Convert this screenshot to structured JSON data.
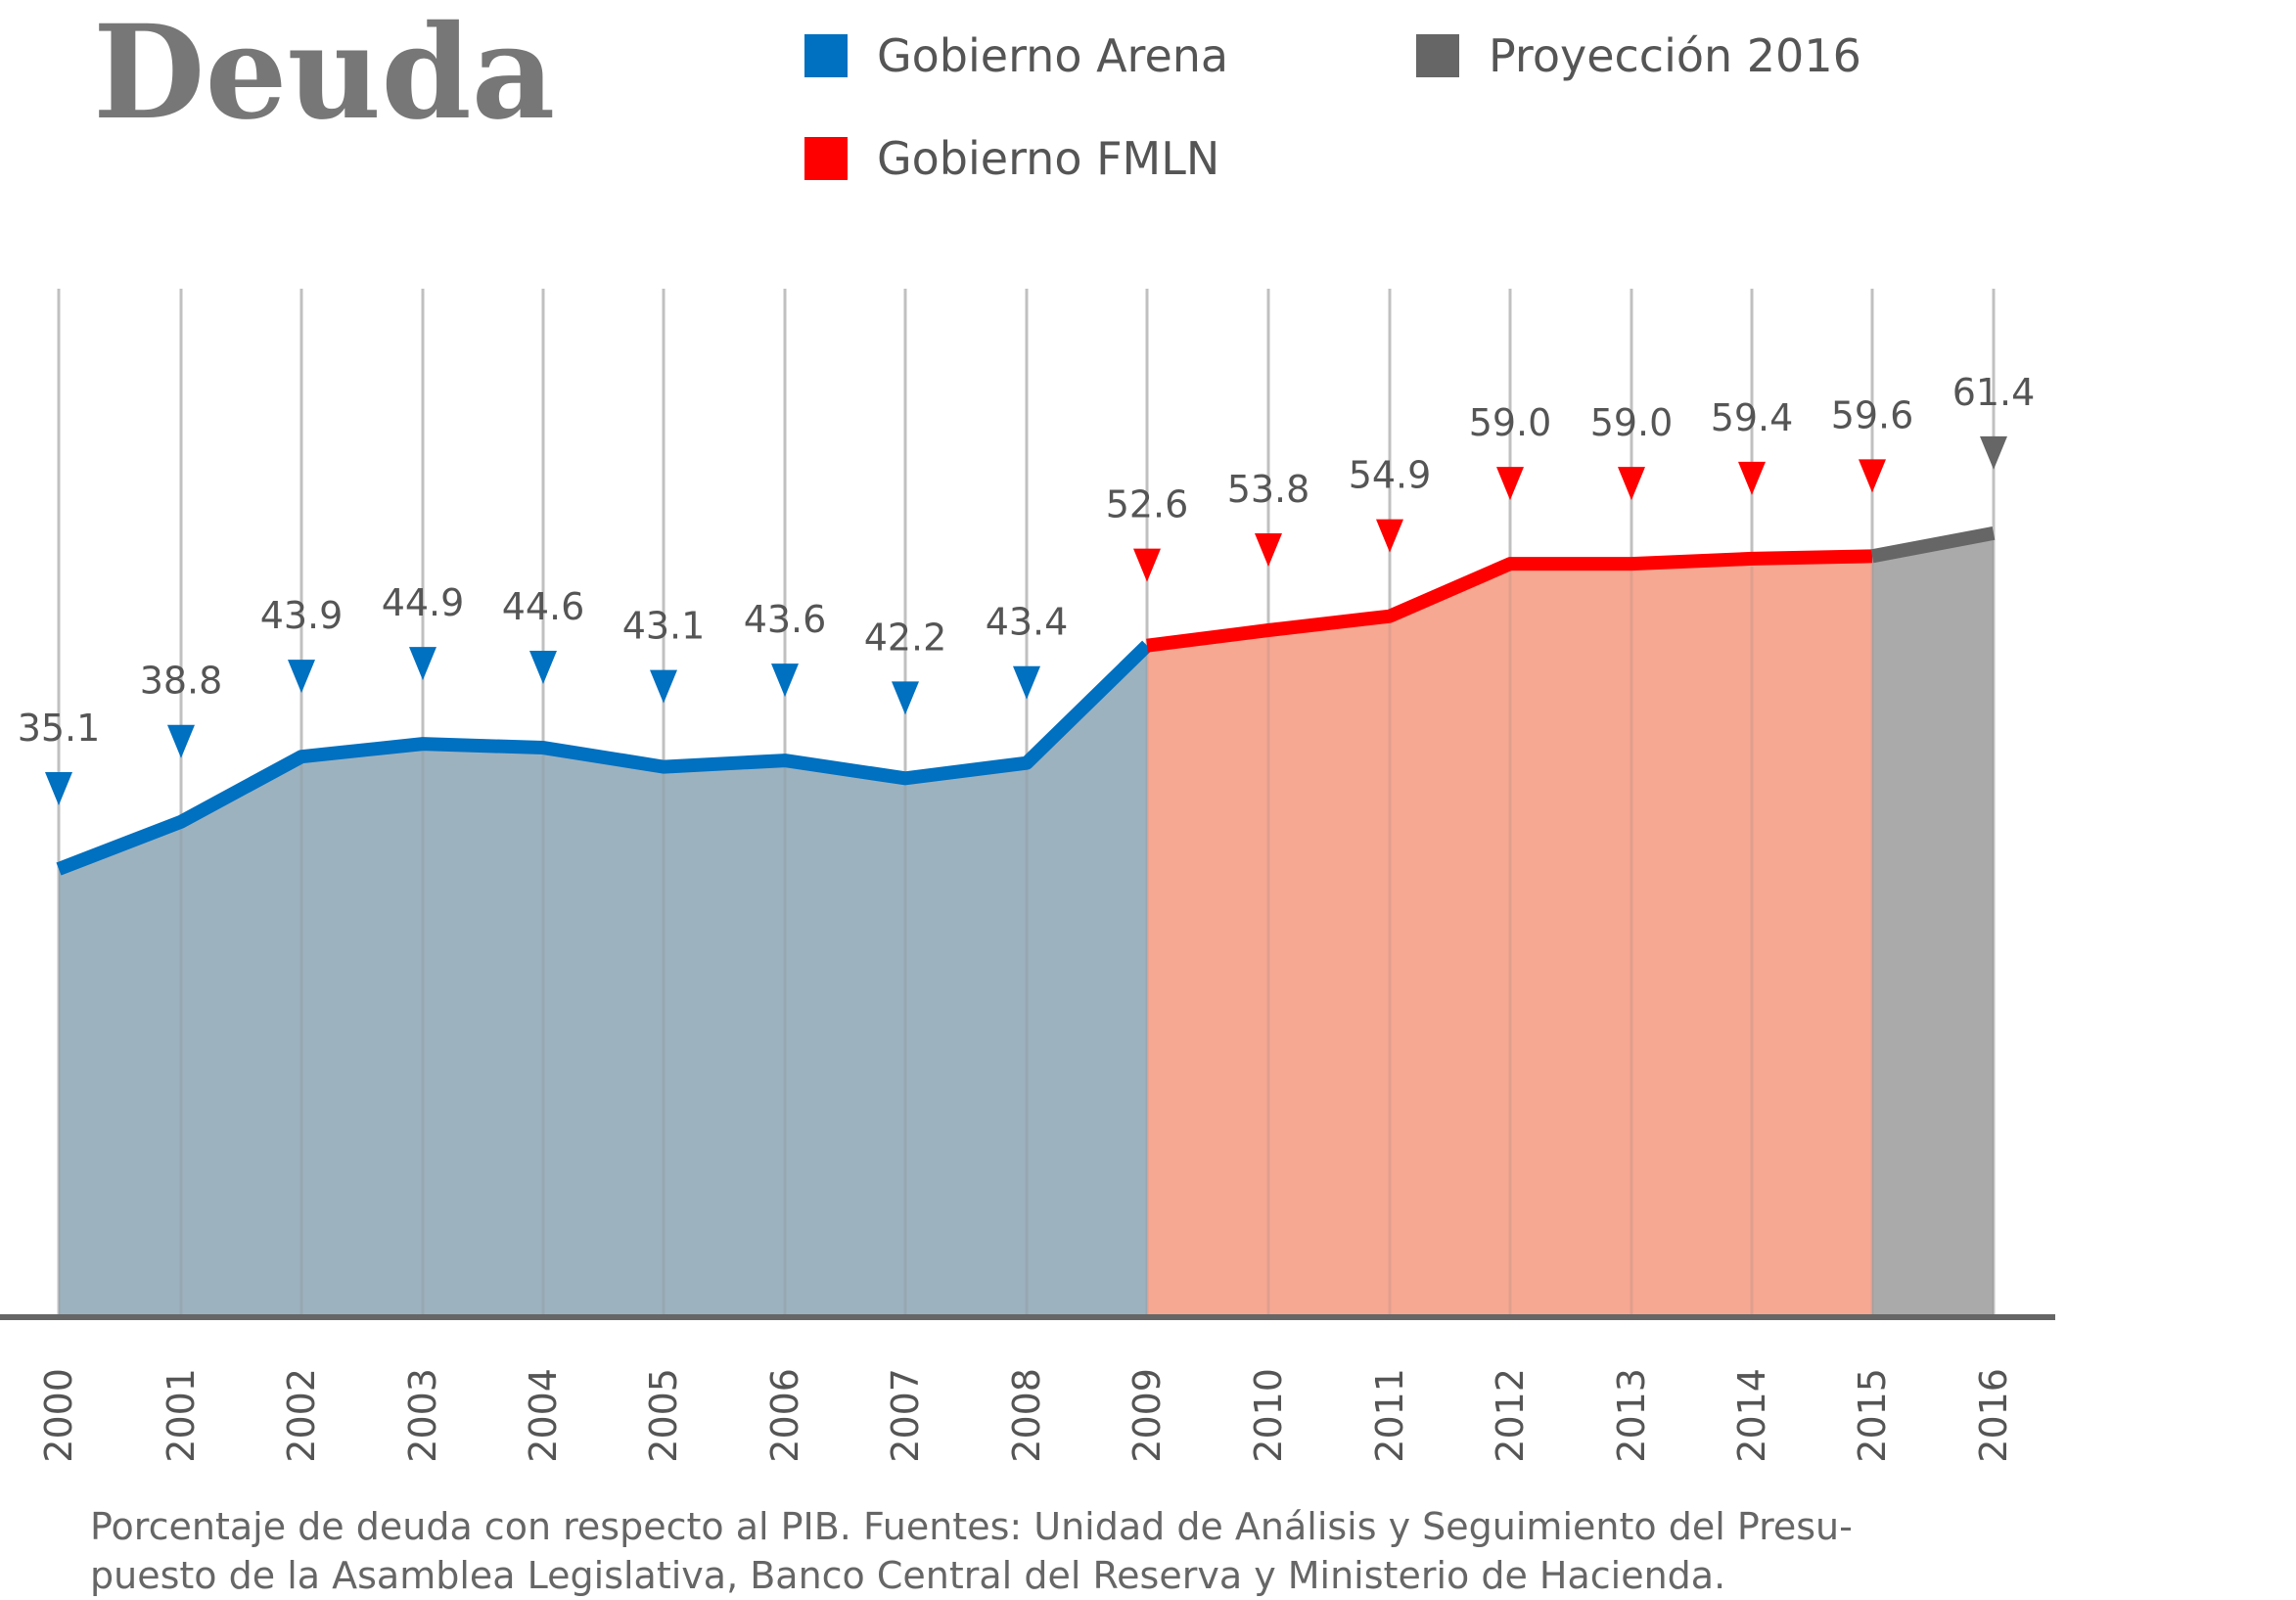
{
  "title": "Deuda",
  "legend": [
    {
      "label": "Gobierno Arena",
      "color": "#0070C0"
    },
    {
      "label": "Gobierno FMLN",
      "color": "#FF0000"
    },
    {
      "label": "Proyección 2016",
      "color": "#666666"
    }
  ],
  "colors": {
    "arena_line": "#0070C0",
    "arena_fill": "#9DB2BF",
    "fmln_line": "#FF0000",
    "fmln_fill": "#F7A892",
    "projection_line": "#666666",
    "projection_fill": "#AAAAAA",
    "gridline": "#D0D0D0",
    "axis": "#666666"
  },
  "chart_data": {
    "type": "area",
    "x": [
      "2000",
      "2001",
      "2002",
      "2003",
      "2004",
      "2005",
      "2006",
      "2007",
      "2008",
      "2009",
      "2010",
      "2011",
      "2012",
      "2013",
      "2014",
      "2015",
      "2016"
    ],
    "series": [
      {
        "name": "Gobierno Arena",
        "x": [
          "2000",
          "2001",
          "2002",
          "2003",
          "2004",
          "2005",
          "2006",
          "2007",
          "2008",
          "2009"
        ],
        "values": [
          35.1,
          38.8,
          43.9,
          44.9,
          44.6,
          43.1,
          43.6,
          42.2,
          43.4,
          52.6
        ]
      },
      {
        "name": "Gobierno FMLN",
        "x": [
          "2009",
          "2010",
          "2011",
          "2012",
          "2013",
          "2014",
          "2015"
        ],
        "values": [
          52.6,
          53.8,
          54.9,
          59.0,
          59.0,
          59.4,
          59.6
        ]
      },
      {
        "name": "Proyección 2016",
        "x": [
          "2015",
          "2016"
        ],
        "values": [
          59.6,
          61.4
        ]
      }
    ],
    "data_labels": [
      "35.1",
      "38.8",
      "43.9",
      "44.9",
      "44.6",
      "43.1",
      "43.6",
      "42.2",
      "43.4",
      "52.6",
      "53.8",
      "54.9",
      "59.0",
      "59.0",
      "59.4",
      "59.6",
      "61.4"
    ],
    "ylim": [
      0,
      70
    ],
    "grid": "vertical"
  },
  "note": {
    "line1": "Porcentaje de deuda con respecto al PIB. Fuentes: Unidad de Análisis y Seguimiento del Presu-",
    "line2": "puesto de la Asamblea Legislativa, Banco Central del Reserva y Ministerio de Hacienda."
  }
}
